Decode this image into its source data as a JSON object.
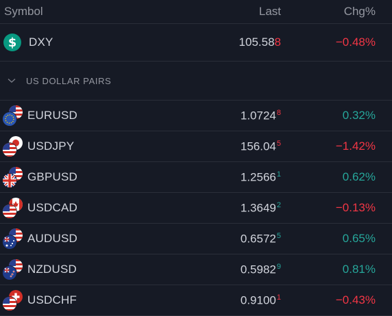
{
  "header": {
    "symbol": "Symbol",
    "last": "Last",
    "chg": "Chg%"
  },
  "colors": {
    "positive": "#26a69a",
    "negative": "#f23645",
    "background": "#161a25"
  },
  "dxy": {
    "symbol": "DXY",
    "icon": "dollar-icon",
    "last_main": "105.58",
    "last_tail": "8",
    "tail_dir": "neg",
    "chg": "−0.48%",
    "chg_dir": "neg"
  },
  "section": {
    "label": "US DOLLAR PAIRS",
    "icon": "chevron-down-icon"
  },
  "rows": [
    {
      "symbol": "EURUSD",
      "flags": [
        "eu",
        "us"
      ],
      "last_main": "1.0724",
      "last_tail": "8",
      "tail_dir": "neg",
      "chg": "0.32%",
      "chg_dir": "pos"
    },
    {
      "symbol": "USDJPY",
      "flags": [
        "us",
        "jp"
      ],
      "last_main": "156.04",
      "last_tail": "5",
      "tail_dir": "neg",
      "chg": "−1.42%",
      "chg_dir": "neg"
    },
    {
      "symbol": "GBPUSD",
      "flags": [
        "gb",
        "us"
      ],
      "last_main": "1.2566",
      "last_tail": "1",
      "tail_dir": "pos",
      "chg": "0.62%",
      "chg_dir": "pos"
    },
    {
      "symbol": "USDCAD",
      "flags": [
        "us",
        "ca"
      ],
      "last_main": "1.3649",
      "last_tail": "2",
      "tail_dir": "pos",
      "chg": "−0.13%",
      "chg_dir": "neg"
    },
    {
      "symbol": "AUDUSD",
      "flags": [
        "au",
        "us"
      ],
      "last_main": "0.6572",
      "last_tail": "5",
      "tail_dir": "pos",
      "chg": "0.65%",
      "chg_dir": "pos"
    },
    {
      "symbol": "NZDUSD",
      "flags": [
        "nz",
        "us"
      ],
      "last_main": "0.5982",
      "last_tail": "9",
      "tail_dir": "pos",
      "chg": "0.81%",
      "chg_dir": "pos"
    },
    {
      "symbol": "USDCHF",
      "flags": [
        "us",
        "ch"
      ],
      "last_main": "0.9100",
      "last_tail": "1",
      "tail_dir": "neg",
      "chg": "−0.43%",
      "chg_dir": "neg"
    }
  ]
}
